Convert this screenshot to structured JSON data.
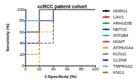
{
  "chart_data": {
    "type": "line",
    "title": "ccRCC patient cohort",
    "x_label": "1-Specificity (%)",
    "y_label": "Sensitivity (%)",
    "xlim": [
      0,
      100
    ],
    "xticks": [
      0,
      20,
      40,
      60,
      80,
      100
    ],
    "ylim": [
      0,
      100
    ],
    "yticks": [
      0,
      20,
      40,
      60,
      80,
      100
    ],
    "grid": false,
    "legend": "right",
    "series": [
      {
        "name": "NDRG1",
        "color": "#000000",
        "line_style": "solid",
        "x": [
          0,
          0,
          20,
          20,
          40,
          40,
          100
        ],
        "values": [
          0,
          60,
          60,
          80,
          80,
          100,
          100
        ]
      },
      {
        "name": "CAV1",
        "color": "#e41a1c",
        "line_style": "solid",
        "x": [
          0,
          0,
          20,
          20,
          100
        ],
        "values": [
          0,
          80,
          80,
          100,
          100
        ]
      },
      {
        "name": "ARHGDIB",
        "color": "#2ca02c",
        "line_style": "solid",
        "x": [
          0,
          0,
          20,
          20,
          100
        ],
        "values": [
          0,
          60,
          60,
          100,
          100
        ]
      },
      {
        "name": "NETO2",
        "color": "#1f3fbf",
        "line_style": "solid",
        "x": [
          0,
          0,
          40,
          40,
          100
        ],
        "values": [
          0,
          80,
          80,
          100,
          100
        ]
      },
      {
        "name": "ATP2B4",
        "color": "#17becf",
        "line_style": "solid",
        "x": [
          0,
          0,
          20,
          20,
          100
        ],
        "values": [
          0,
          80,
          80,
          100,
          100
        ]
      },
      {
        "name": "NNMT",
        "color": "#d62ad0",
        "line_style": "solid",
        "x": [
          0,
          0,
          20,
          20,
          100
        ],
        "values": [
          0,
          40,
          40,
          100,
          100
        ]
      },
      {
        "name": "ATP6V0A4",
        "color": "#ff9900",
        "line_style": "dashed",
        "x": [
          0,
          20,
          20,
          40,
          40,
          100
        ],
        "values": [
          0,
          0,
          60,
          60,
          100,
          100
        ]
      },
      {
        "name": "KCNJ1",
        "color": "#7f7f7f",
        "line_style": "dashed",
        "x": [
          0,
          0,
          20,
          20,
          100
        ],
        "values": [
          0,
          60,
          60,
          100,
          100
        ]
      },
      {
        "name": "CLDN8",
        "color": "#333366",
        "line_style": "dashed",
        "x": [
          0,
          0,
          40,
          40,
          100
        ],
        "values": [
          0,
          40,
          40,
          100,
          100
        ]
      },
      {
        "name": "TMPRSS2",
        "color": "#6baed6",
        "line_style": "dashed",
        "x": [
          0,
          0,
          20,
          20,
          100
        ],
        "values": [
          0,
          80,
          80,
          100,
          100
        ]
      },
      {
        "name": "KNG1",
        "color": "#8c8c2a",
        "line_style": "dashed",
        "x": [
          0,
          0,
          20,
          20,
          100
        ],
        "values": [
          0,
          20,
          20,
          100,
          100
        ]
      }
    ]
  }
}
